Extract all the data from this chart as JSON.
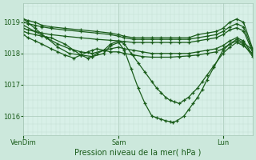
{
  "title": "",
  "xlabel": "Pression niveau de la mer( hPa )",
  "ylabel": "",
  "bg_color": "#cce8dc",
  "plot_bg_color": "#d8f0e8",
  "line_color": "#1a5c1a",
  "grid_color_major": "#a8c8b8",
  "grid_color_minor": "#c0ddd0",
  "ylim": [
    1015.4,
    1019.6
  ],
  "yticks": [
    1016,
    1017,
    1018,
    1019
  ],
  "xtick_labels": [
    "VenDim",
    "Sam",
    "Lun"
  ],
  "xtick_pos": [
    0.0,
    0.415,
    0.87
  ],
  "series": [
    {
      "x": [
        0.0,
        0.02,
        0.05,
        0.08,
        0.12,
        0.18,
        0.25,
        0.32,
        0.38,
        0.415,
        0.44,
        0.48,
        0.52,
        0.56,
        0.6,
        0.64,
        0.68,
        0.72,
        0.76,
        0.8,
        0.84,
        0.87,
        0.9,
        0.93,
        0.96,
        1.0
      ],
      "y": [
        1019.1,
        1019.05,
        1019.0,
        1018.9,
        1018.85,
        1018.8,
        1018.75,
        1018.7,
        1018.65,
        1018.6,
        1018.55,
        1018.5,
        1018.5,
        1018.5,
        1018.5,
        1018.5,
        1018.5,
        1018.5,
        1018.6,
        1018.65,
        1018.7,
        1018.8,
        1019.0,
        1019.1,
        1019.0,
        1018.15
      ]
    },
    {
      "x": [
        0.0,
        0.02,
        0.05,
        0.08,
        0.12,
        0.18,
        0.25,
        0.32,
        0.38,
        0.415,
        0.44,
        0.48,
        0.52,
        0.56,
        0.6,
        0.64,
        0.68,
        0.72,
        0.76,
        0.8,
        0.84,
        0.87,
        0.9,
        0.93,
        0.96,
        1.0
      ],
      "y": [
        1019.0,
        1018.95,
        1018.9,
        1018.85,
        1018.8,
        1018.75,
        1018.7,
        1018.65,
        1018.6,
        1018.55,
        1018.5,
        1018.45,
        1018.45,
        1018.45,
        1018.45,
        1018.45,
        1018.45,
        1018.45,
        1018.5,
        1018.55,
        1018.6,
        1018.7,
        1018.85,
        1018.95,
        1018.85,
        1018.1
      ]
    },
    {
      "x": [
        0.0,
        0.02,
        0.05,
        0.08,
        0.12,
        0.18,
        0.25,
        0.32,
        0.38,
        0.415,
        0.44,
        0.48,
        0.52,
        0.56,
        0.6,
        0.64,
        0.68,
        0.72,
        0.76,
        0.8,
        0.84,
        0.87,
        0.9,
        0.93,
        0.96,
        1.0
      ],
      "y": [
        1018.8,
        1018.75,
        1018.7,
        1018.65,
        1018.6,
        1018.55,
        1018.5,
        1018.45,
        1018.42,
        1018.4,
        1018.38,
        1018.35,
        1018.35,
        1018.35,
        1018.35,
        1018.35,
        1018.35,
        1018.35,
        1018.4,
        1018.45,
        1018.5,
        1018.6,
        1018.75,
        1018.82,
        1018.72,
        1018.05
      ]
    },
    {
      "x": [
        0.0,
        0.02,
        0.05,
        0.08,
        0.12,
        0.18,
        0.22,
        0.25,
        0.28,
        0.3,
        0.32,
        0.35,
        0.38,
        0.415,
        0.44,
        0.48,
        0.52,
        0.56,
        0.6,
        0.64,
        0.68,
        0.72,
        0.76,
        0.8,
        0.84,
        0.87,
        0.9,
        0.93,
        0.96,
        1.0
      ],
      "y": [
        1018.7,
        1018.65,
        1018.6,
        1018.55,
        1018.5,
        1018.3,
        1018.1,
        1017.95,
        1017.85,
        1017.9,
        1018.0,
        1018.1,
        1018.15,
        1018.2,
        1018.15,
        1018.1,
        1018.05,
        1018.0,
        1018.0,
        1018.0,
        1018.0,
        1018.0,
        1018.05,
        1018.1,
        1018.15,
        1018.25,
        1018.4,
        1018.5,
        1018.4,
        1017.95
      ]
    },
    {
      "x": [
        0.0,
        0.02,
        0.05,
        0.08,
        0.12,
        0.15,
        0.18,
        0.22,
        0.25,
        0.28,
        0.3,
        0.32,
        0.35,
        0.38,
        0.415,
        0.44,
        0.48,
        0.52,
        0.56,
        0.6,
        0.64,
        0.68,
        0.72,
        0.76,
        0.8,
        0.84,
        0.87,
        0.9,
        0.93,
        0.96,
        1.0
      ],
      "y": [
        1018.6,
        1018.5,
        1018.4,
        1018.3,
        1018.15,
        1018.05,
        1017.95,
        1017.85,
        1017.95,
        1018.05,
        1018.1,
        1018.15,
        1018.1,
        1018.05,
        1018.05,
        1018.0,
        1017.95,
        1017.9,
        1017.88,
        1017.88,
        1017.88,
        1017.9,
        1017.92,
        1017.95,
        1018.0,
        1018.05,
        1018.15,
        1018.3,
        1018.4,
        1018.3,
        1017.9
      ]
    },
    {
      "x": [
        0.0,
        0.05,
        0.1,
        0.15,
        0.2,
        0.25,
        0.3,
        0.35,
        0.38,
        0.415,
        0.44,
        0.47,
        0.5,
        0.53,
        0.56,
        0.58,
        0.6,
        0.62,
        0.64,
        0.66,
        0.68,
        0.7,
        0.72,
        0.74,
        0.76,
        0.78,
        0.8,
        0.83,
        0.87,
        0.9,
        0.93,
        0.96,
        1.0
      ],
      "y": [
        1018.9,
        1018.7,
        1018.5,
        1018.3,
        1018.15,
        1018.05,
        1018.0,
        1018.1,
        1018.3,
        1018.4,
        1018.3,
        1018.0,
        1017.7,
        1017.4,
        1017.1,
        1016.9,
        1016.75,
        1016.6,
        1016.5,
        1016.45,
        1016.4,
        1016.5,
        1016.6,
        1016.75,
        1016.9,
        1017.1,
        1017.3,
        1017.6,
        1018.0,
        1018.2,
        1018.35,
        1018.25,
        1018.0
      ]
    },
    {
      "x": [
        0.0,
        0.05,
        0.1,
        0.15,
        0.2,
        0.25,
        0.3,
        0.35,
        0.38,
        0.415,
        0.44,
        0.47,
        0.5,
        0.53,
        0.56,
        0.58,
        0.6,
        0.62,
        0.64,
        0.65,
        0.67,
        0.7,
        0.72,
        0.74,
        0.76,
        0.78,
        0.8,
        0.83,
        0.87,
        0.9,
        0.93,
        0.96,
        1.0
      ],
      "y": [
        1019.1,
        1018.8,
        1018.5,
        1018.2,
        1018.0,
        1017.95,
        1017.9,
        1018.0,
        1018.25,
        1018.35,
        1018.1,
        1017.5,
        1016.9,
        1016.4,
        1016.0,
        1015.95,
        1015.9,
        1015.85,
        1015.82,
        1015.8,
        1015.85,
        1016.0,
        1016.2,
        1016.4,
        1016.6,
        1016.85,
        1017.15,
        1017.55,
        1018.1,
        1018.3,
        1018.45,
        1018.35,
        1018.1
      ]
    }
  ]
}
